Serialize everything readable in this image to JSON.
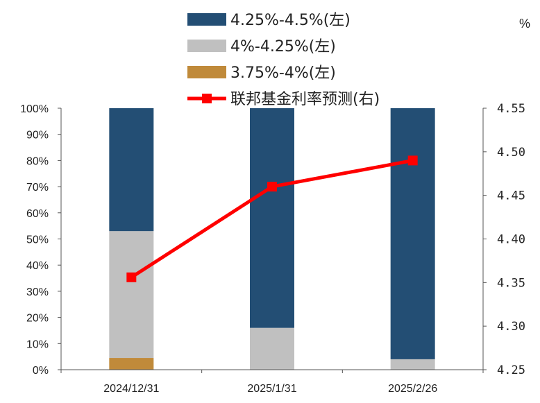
{
  "chart_data": {
    "type": "bar",
    "categories": [
      "2024/12/31",
      "2025/1/31",
      "2025/2/26"
    ],
    "series": [
      {
        "name": "3.75%-4%(左)",
        "values": [
          4.5,
          0,
          0
        ],
        "color": "#c08a3a",
        "axis": "left"
      },
      {
        "name": "4%-4.25%(左)",
        "values": [
          48.5,
          16,
          4
        ],
        "color": "#c0c0c0",
        "axis": "left"
      },
      {
        "name": "4.25%-4.5%(左)",
        "values": [
          47,
          84,
          96
        ],
        "color": "#234e74",
        "axis": "left"
      }
    ],
    "line_series": {
      "name": "联邦基金利率预测(右)",
      "values": [
        4.356,
        4.46,
        4.49
      ],
      "color": "#ff0000",
      "axis": "right"
    },
    "legend_order": [
      "4.25%-4.5%(左)",
      "4%-4.25%(左)",
      "3.75%-4%(左)",
      "联邦基金利率预测(右)"
    ],
    "y_left": {
      "lim": [
        0,
        100
      ],
      "ticks": [
        "0%",
        "10%",
        "20%",
        "30%",
        "40%",
        "50%",
        "60%",
        "70%",
        "80%",
        "90%",
        "100%"
      ]
    },
    "y_right": {
      "lim": [
        4.25,
        4.55
      ],
      "unit": "%",
      "ticks": [
        "4.25",
        "4.30",
        "4.35",
        "4.40",
        "4.45",
        "4.50",
        "4.55"
      ]
    },
    "stacked": true,
    "grid": false,
    "legend_position": "top"
  }
}
